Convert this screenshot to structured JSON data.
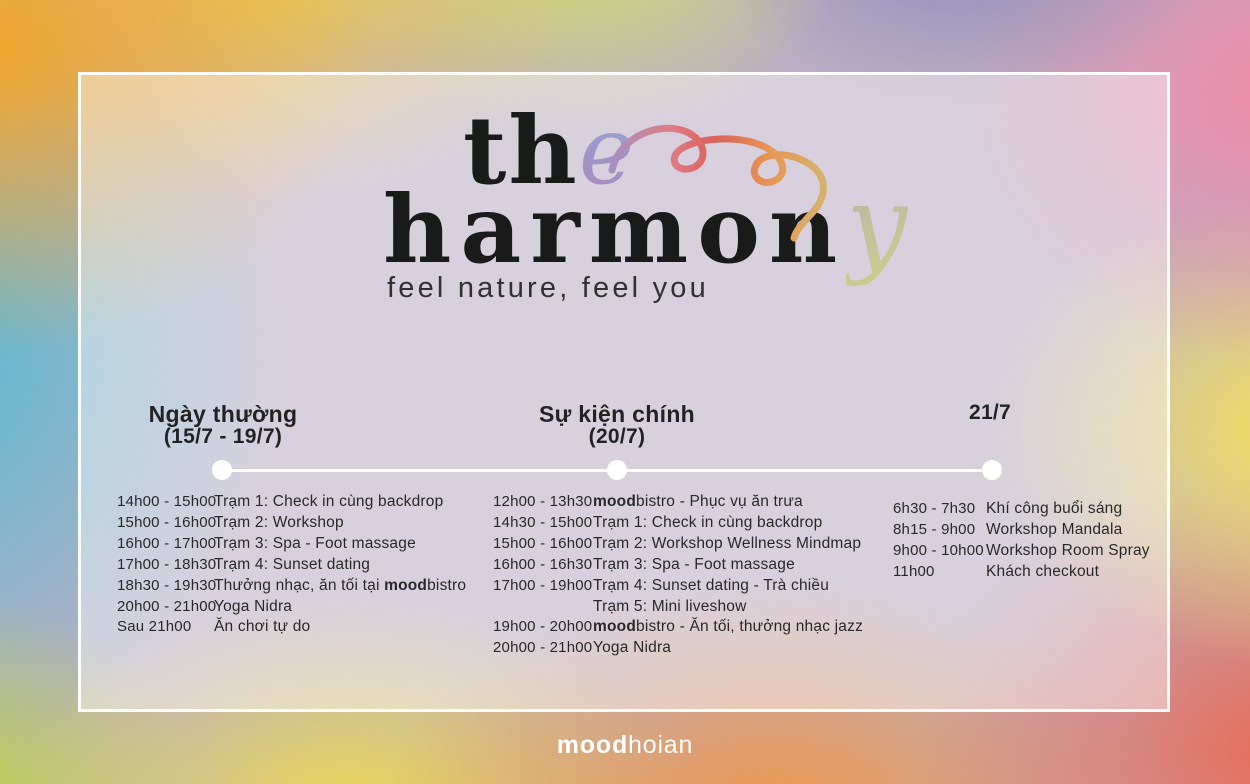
{
  "palette": {
    "timeline_white": "#ffffff",
    "text_dark": "#232323",
    "logo_black": "#161616",
    "accent_blue": "#8fa9d6",
    "accent_purple": "#a78abb",
    "accent_pink": "#df7680",
    "accent_red": "#d95b53",
    "accent_orange": "#e6924f",
    "accent_gold": "#d2af68",
    "accent_green": "#c9cd85"
  },
  "logo": {
    "title_line1_prefix": "th",
    "title_line1_accent": "e",
    "title_line2_prefix": "harmon",
    "title_line2_accent": "y",
    "tagline": "feel nature, feel you"
  },
  "timeline_columns": [
    {
      "title": "Ngày thường",
      "subtitle": "(15/7 - 19/7)",
      "rows": [
        {
          "time": "14h00 - 15h00",
          "activity": [
            {
              "t": "Trạm 1: Check in cùng backdrop"
            }
          ]
        },
        {
          "time": "15h00 - 16h00",
          "activity": [
            {
              "t": "Trạm 2: Workshop"
            }
          ]
        },
        {
          "time": "16h00 - 17h00",
          "activity": [
            {
              "t": "Trạm 3: Spa - Foot massage"
            }
          ]
        },
        {
          "time": "17h00 - 18h30",
          "activity": [
            {
              "t": "Trạm 4: Sunset dating"
            }
          ]
        },
        {
          "time": "18h30 - 19h30",
          "activity": [
            {
              "t": "Thưởng nhạc, ăn tối tại "
            },
            {
              "t": "mood",
              "b": true
            },
            {
              "t": "bistro"
            }
          ]
        },
        {
          "time": "20h00 - 21h00",
          "activity": [
            {
              "t": "Yoga Nidra"
            }
          ]
        },
        {
          "time": "Sau 21h00",
          "activity": [
            {
              "t": "Ăn chơi tự do"
            }
          ]
        }
      ]
    },
    {
      "title": "Sự kiện chính",
      "subtitle": "(20/7)",
      "rows": [
        {
          "time": "12h00 - 13h30",
          "activity": [
            {
              "t": "mood",
              "b": true
            },
            {
              "t": "bistro - Phục vụ ăn trưa"
            }
          ]
        },
        {
          "time": "14h30 - 15h00",
          "activity": [
            {
              "t": "Trạm 1: Check in cùng backdrop"
            }
          ]
        },
        {
          "time": "15h00 - 16h00",
          "activity": [
            {
              "t": "Trạm 2: Workshop Wellness Mindmap"
            }
          ]
        },
        {
          "time": "16h00 - 16h30",
          "activity": [
            {
              "t": "Trạm 3: Spa - Foot massage"
            }
          ]
        },
        {
          "time": "17h00 - 19h00",
          "activity": [
            {
              "t": "Trạm 4: Sunset dating - Trà chiều"
            }
          ]
        },
        {
          "time": "",
          "activity": [
            {
              "t": "Trạm 5: Mini liveshow"
            }
          ]
        },
        {
          "time": "19h00 - 20h00",
          "activity": [
            {
              "t": "mood",
              "b": true
            },
            {
              "t": "bistro - Ăn tối, thưởng nhạc jazz"
            }
          ]
        },
        {
          "time": "20h00 - 21h00",
          "activity": [
            {
              "t": "Yoga Nidra"
            }
          ]
        }
      ]
    },
    {
      "title": "21/7",
      "subtitle": "",
      "rows": [
        {
          "time": "6h30 - 7h30",
          "activity": [
            {
              "t": "Khí công buổi sáng"
            }
          ]
        },
        {
          "time": "8h15 - 9h00",
          "activity": [
            {
              "t": "Workshop Mandala"
            }
          ]
        },
        {
          "time": "9h00 - 10h00",
          "activity": [
            {
              "t": "Workshop Room Spray"
            }
          ]
        },
        {
          "time": "11h00",
          "activity": [
            {
              "t": "Khách checkout"
            }
          ]
        }
      ]
    }
  ],
  "footer": {
    "brand_bold": "mood",
    "brand_rest": "hoian"
  }
}
